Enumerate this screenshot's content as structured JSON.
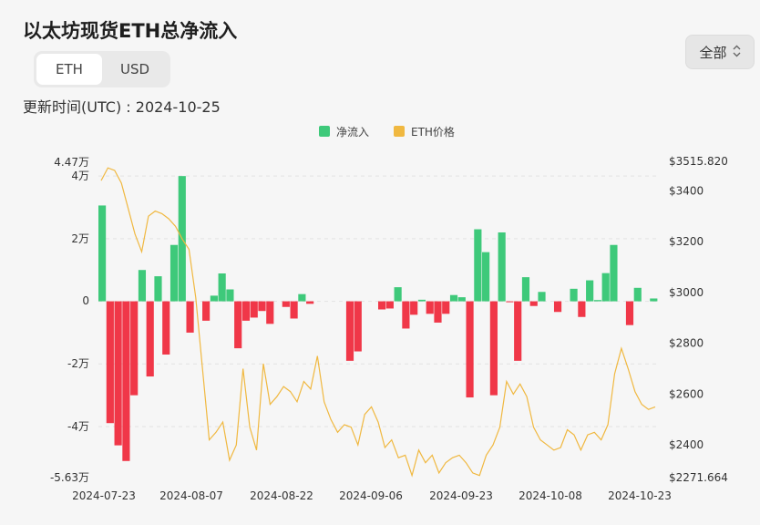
{
  "page": {
    "title": "以太坊现货ETH总净流入",
    "updated_label": "更新时间(UTC) : 2024-10-25"
  },
  "toggle": {
    "options": [
      "ETH",
      "USD"
    ],
    "active": "ETH"
  },
  "range_select": {
    "selected": "全部",
    "icon": "chevron-up-down-icon"
  },
  "colors": {
    "inflow_positive": "#3ec97a",
    "inflow_negative": "#f03748",
    "price_line": "#f0b840",
    "grid": "#e2e2e2"
  },
  "chart_data": {
    "type": "bar",
    "legend": [
      {
        "name": "净流入",
        "color": "#3ec97a"
      },
      {
        "name": "ETH价格",
        "color": "#f0b840"
      }
    ],
    "legend_position": "top-center",
    "grid": true,
    "x_tick_labels": [
      "2024-07-23",
      "2024-08-07",
      "2024-08-22",
      "2024-09-06",
      "2024-09-23",
      "2024-10-08",
      "2024-10-23"
    ],
    "left_axis": {
      "ylim": [
        -56300,
        44700
      ],
      "ticks": [
        44700,
        40000,
        20000,
        0,
        -20000,
        -40000,
        -56300
      ],
      "tick_labels": [
        "4.47万",
        "4万",
        "2万",
        "0",
        "-2万",
        "-4万",
        "-5.63万"
      ]
    },
    "right_axis": {
      "ylim": [
        2271.664,
        3515.82
      ],
      "ticks": [
        3515.82,
        3400,
        3200,
        3000,
        2800,
        2600,
        2400,
        2271.664
      ],
      "tick_labels": [
        "$3515.820",
        "$3400",
        "$3200",
        "$3000",
        "$2800",
        "$2600",
        "$2400",
        "$2271.664"
      ]
    },
    "series": [
      {
        "name": "净流入",
        "axis": "left",
        "values": [
          30600,
          -38900,
          -46000,
          -51000,
          -30000,
          10000,
          -24000,
          8000,
          -17000,
          18000,
          40000,
          -10000,
          0,
          -6200,
          1800,
          8900,
          3800,
          -15000,
          -6200,
          -5200,
          -3100,
          -7200,
          0,
          -1800,
          -5500,
          2300,
          -800,
          0,
          0,
          0,
          0,
          -19000,
          -16000,
          0,
          0,
          -2600,
          -2300,
          4500,
          -8700,
          -4300,
          500,
          -4000,
          -6800,
          -4000,
          2000,
          1300,
          -30700,
          23000,
          15700,
          -30000,
          22000,
          -300,
          -19000,
          7700,
          -1500,
          3000,
          0,
          -3400,
          0,
          4000,
          -5000,
          6700,
          400,
          9000,
          18000,
          0,
          -7600,
          4300,
          0,
          900
        ]
      },
      {
        "name": "ETH价格",
        "axis": "right",
        "values": [
          3440,
          3490,
          3480,
          3430,
          3330,
          3230,
          3160,
          3300,
          3320,
          3310,
          3290,
          3260,
          3210,
          3170,
          2980,
          2700,
          2420,
          2450,
          2490,
          2340,
          2400,
          2700,
          2470,
          2380,
          2720,
          2560,
          2590,
          2630,
          2610,
          2570,
          2650,
          2620,
          2750,
          2570,
          2500,
          2450,
          2480,
          2470,
          2400,
          2520,
          2550,
          2490,
          2390,
          2420,
          2350,
          2360,
          2280,
          2380,
          2330,
          2360,
          2290,
          2330,
          2350,
          2360,
          2330,
          2290,
          2280,
          2360,
          2400,
          2470,
          2650,
          2600,
          2640,
          2590,
          2470,
          2420,
          2400,
          2380,
          2390,
          2460,
          2440,
          2380,
          2440,
          2450,
          2420,
          2480,
          2680,
          2780,
          2700,
          2610,
          2560,
          2540,
          2550
        ]
      }
    ]
  }
}
